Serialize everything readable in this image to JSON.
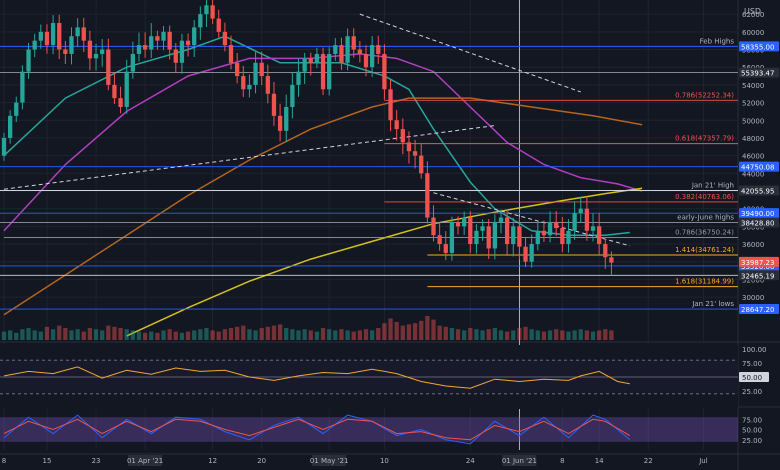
{
  "chart_data": [
    {
      "type": "candlestick",
      "panel": "price",
      "currency_label": "USD",
      "ylim": [
        25600,
        63600
      ],
      "y_ticks": [
        30000,
        32000,
        34000,
        36000,
        38000,
        40000,
        42000,
        44000,
        46000,
        48000,
        50000,
        52000,
        54000,
        56000,
        58000,
        60000,
        62000
      ],
      "x_ticks": [
        {
          "day": 0,
          "label": "8"
        },
        {
          "day": 7,
          "label": "15"
        },
        {
          "day": 15,
          "label": "23"
        },
        {
          "day": 23,
          "label": "01 Apr '21"
        },
        {
          "day": 34,
          "label": "12"
        },
        {
          "day": 42,
          "label": "20"
        },
        {
          "day": 53,
          "label": "01 May '21"
        },
        {
          "day": 62,
          "label": "10"
        },
        {
          "day": 76,
          "label": "24"
        },
        {
          "day": 84,
          "label": "01 Jun '21"
        },
        {
          "day": 91,
          "label": "8"
        },
        {
          "day": 97,
          "label": "14"
        },
        {
          "day": 105,
          "label": "22"
        },
        {
          "day": 114,
          "label": "Jul"
        }
      ],
      "x_range": [
        0,
        118
      ],
      "closes": [
        48000,
        50500,
        52000,
        55500,
        58000,
        59000,
        60000,
        58500,
        61000,
        58000,
        57500,
        59500,
        60500,
        59000,
        57000,
        57500,
        58000,
        54000,
        52500,
        51500,
        55500,
        57500,
        58500,
        58000,
        59500,
        59000,
        60000,
        58000,
        56500,
        59000,
        58500,
        60500,
        62000,
        63000,
        61500,
        60000,
        58500,
        56500,
        55000,
        53500,
        54000,
        56500,
        55000,
        53000,
        50500,
        48800,
        51500,
        54000,
        55500,
        57000,
        56500,
        57500,
        53500,
        57500,
        58500,
        56500,
        59500,
        58000,
        57500,
        56000,
        58500,
        57500,
        53500,
        50000,
        49000,
        47500,
        46500,
        46000,
        44000,
        39000,
        37000,
        36000,
        35000,
        38500,
        38000,
        39000,
        36000,
        37500,
        38000,
        35500,
        38500,
        39000,
        36000,
        38000,
        35700,
        34000,
        36000,
        37500,
        37000,
        38500,
        37800,
        36000,
        37500,
        39500,
        40000,
        37500,
        38000,
        36000,
        34500,
        33900
      ],
      "ranges": [
        {
          "from": 0,
          "open": 46000,
          "high": 52000,
          "low": 45500
        }
      ],
      "range_note": "daily open/high/low estimated around the closes",
      "moving_averages": [
        {
          "color": "#26a69a",
          "points": [
            [
              0,
              46000
            ],
            [
              10,
              52500
            ],
            [
              20,
              56000
            ],
            [
              30,
              58000
            ],
            [
              36,
              59500
            ],
            [
              45,
              56500
            ],
            [
              55,
              56500
            ],
            [
              62,
              55000
            ],
            [
              66,
              53500
            ],
            [
              70,
              49000
            ],
            [
              76,
              43000
            ],
            [
              80,
              40000
            ],
            [
              86,
              37500
            ],
            [
              92,
              37000
            ],
            [
              98,
              37000
            ],
            [
              102,
              37300
            ]
          ]
        },
        {
          "color": "#b23fc1",
          "points": [
            [
              0,
              37500
            ],
            [
              10,
              45000
            ],
            [
              20,
              51000
            ],
            [
              30,
              55000
            ],
            [
              40,
              57000
            ],
            [
              50,
              57000
            ],
            [
              58,
              57500
            ],
            [
              64,
              57000
            ],
            [
              70,
              55500
            ],
            [
              76,
              51500
            ],
            [
              82,
              47500
            ],
            [
              88,
              45000
            ],
            [
              94,
              43500
            ],
            [
              100,
              42800
            ],
            [
              104,
              42000
            ]
          ]
        },
        {
          "color": "#b5651d",
          "points": [
            [
              0,
              28000
            ],
            [
              10,
              32500
            ],
            [
              20,
              37000
            ],
            [
              30,
              41500
            ],
            [
              40,
              45500
            ],
            [
              50,
              49000
            ],
            [
              60,
              51500
            ],
            [
              66,
              52500
            ],
            [
              76,
              52500
            ],
            [
              86,
              51500
            ],
            [
              96,
              50500
            ],
            [
              104,
              49500
            ]
          ]
        },
        {
          "color": "#d4c11f",
          "points": [
            [
              20,
              25600
            ],
            [
              30,
              28800
            ],
            [
              40,
              31800
            ],
            [
              50,
              34300
            ],
            [
              60,
              36300
            ],
            [
              70,
              38300
            ],
            [
              80,
              39600
            ],
            [
              90,
              40800
            ],
            [
              98,
              41700
            ],
            [
              104,
              42300
            ]
          ]
        }
      ],
      "horizontal_levels": [
        {
          "value": 58355.0,
          "label": "Feb Highs",
          "price_tag": "58355.00",
          "color": "#2962ff",
          "tag_color": "#2962ff"
        },
        {
          "value": 55393.47,
          "price_tag": "55393.47",
          "color": "#9598a1",
          "tag_color": "#2a2e39"
        },
        {
          "value": 44750.08,
          "price_tag": "44750.08",
          "color": "#2962ff",
          "tag_color": "#2962ff"
        },
        {
          "value": 42055.95,
          "label": "Jan 21' High",
          "price_tag": "42055.95",
          "color": "#d1d4dc",
          "tag_color": "#2a2e39"
        },
        {
          "value": 39490.0,
          "price_tag": "39490.00",
          "color": "#2962ff",
          "tag_color": "#2962ff"
        },
        {
          "value": 38428.8,
          "label": "early-June highs",
          "price_tag": "38428.80",
          "color": "#9598a1",
          "tag_color": "#2a2e39"
        },
        {
          "value": 33520.0,
          "price_tag": "33520.00",
          "color": "#2962ff",
          "tag_color": "#2962ff"
        },
        {
          "value": 32465.19,
          "price_tag": "32465.19",
          "color": "#d1d4dc",
          "tag_color": "#2a2e39"
        },
        {
          "value": 28647.2,
          "label": "Jan 21' lows",
          "price_tag": "28647.20",
          "color": "#2962ff",
          "tag_color": "#2962ff"
        }
      ],
      "current_price": {
        "value": 33987.23,
        "price_tag": "33987.23",
        "tag_color": "#ef5350"
      },
      "fib_levels": [
        {
          "value": 52252.34,
          "label": "0.786(52252.34)",
          "color": "#ef5350",
          "from_day": 62
        },
        {
          "value": 47357.79,
          "label": "0.618(47357.79)",
          "color": "#ef5350",
          "from_day": 62
        },
        {
          "value": 40763.06,
          "label": "0.382(40763.06)",
          "color": "#ef5350",
          "from_day": 62
        },
        {
          "value": 36750.24,
          "label": "0.786(36750.24)",
          "color": "#9598a1",
          "from_day": 0
        },
        {
          "value": 34761.24,
          "label": "1.414(34761.24)",
          "color": "#f9a825",
          "from_day": 69
        },
        {
          "value": 31184.99,
          "label": "1.618(31184.99)",
          "color": "#f9a825",
          "from_day": 69
        }
      ],
      "trendlines": [
        {
          "points": [
            [
              0,
              42200
            ],
            [
              80,
              49400
            ]
          ],
          "color": "#d1d4dc",
          "dashed": true
        },
        {
          "points": [
            [
              58,
              62000
            ],
            [
              94,
              53200
            ]
          ],
          "color": "#d1d4dc",
          "dashed": true
        },
        {
          "points": [
            [
              70,
              41800
            ],
            [
              102,
              35800
            ]
          ],
          "color": "#d1d4dc",
          "dashed": true
        }
      ],
      "vertical_lines": [
        {
          "day": 84
        }
      ],
      "volume": {
        "note": "relative volume bars (no scale printed)",
        "values": [
          0.35,
          0.4,
          0.3,
          0.45,
          0.5,
          0.4,
          0.35,
          0.55,
          0.45,
          0.6,
          0.5,
          0.4,
          0.45,
          0.35,
          0.5,
          0.45,
          0.4,
          0.6,
          0.55,
          0.5,
          0.45,
          0.4,
          0.35,
          0.3,
          0.35,
          0.3,
          0.4,
          0.45,
          0.35,
          0.3,
          0.35,
          0.4,
          0.45,
          0.5,
          0.4,
          0.35,
          0.45,
          0.5,
          0.55,
          0.6,
          0.45,
          0.4,
          0.5,
          0.55,
          0.6,
          0.65,
          0.5,
          0.45,
          0.4,
          0.45,
          0.4,
          0.35,
          0.5,
          0.45,
          0.4,
          0.45,
          0.4,
          0.35,
          0.4,
          0.45,
          0.4,
          0.5,
          0.7,
          0.9,
          0.75,
          0.6,
          0.65,
          0.7,
          0.8,
          1.0,
          0.85,
          0.6,
          0.55,
          0.5,
          0.45,
          0.4,
          0.5,
          0.45,
          0.4,
          0.45,
          0.5,
          0.4,
          0.35,
          0.4,
          0.5,
          0.55,
          0.45,
          0.4,
          0.35,
          0.4,
          0.45,
          0.4,
          0.35,
          0.4,
          0.45,
          0.4,
          0.35,
          0.4,
          0.45,
          0.4
        ]
      }
    },
    {
      "type": "line",
      "panel": "rsi",
      "ylim": [
        0,
        100
      ],
      "y_ticks": [
        25,
        75,
        100
      ],
      "levels": [
        20,
        50,
        80
      ],
      "current_tag": "50.00",
      "x": [
        0,
        4,
        8,
        12,
        16,
        20,
        24,
        28,
        32,
        36,
        40,
        44,
        48,
        52,
        56,
        60,
        64,
        68,
        72,
        76,
        80,
        84,
        88,
        92,
        94,
        97,
        100,
        102
      ],
      "values": [
        52,
        60,
        56,
        68,
        48,
        62,
        55,
        66,
        60,
        62,
        50,
        44,
        52,
        58,
        56,
        64,
        56,
        42,
        34,
        30,
        46,
        42,
        46,
        44,
        52,
        60,
        42,
        38
      ],
      "line_color": "#f0a830"
    },
    {
      "type": "line",
      "panel": "stochastic",
      "ylim": [
        0,
        100
      ],
      "y_ticks": [
        25,
        50,
        75
      ],
      "x": [
        0,
        4,
        8,
        12,
        16,
        20,
        24,
        28,
        32,
        36,
        40,
        44,
        48,
        52,
        56,
        60,
        64,
        68,
        72,
        76,
        80,
        84,
        88,
        92,
        96,
        98,
        102
      ],
      "series": [
        {
          "color": "#2962ff",
          "values": [
            30,
            80,
            40,
            85,
            30,
            75,
            40,
            80,
            75,
            45,
            25,
            60,
            80,
            40,
            85,
            70,
            35,
            50,
            25,
            15,
            70,
            35,
            80,
            30,
            85,
            75,
            25
          ]
        },
        {
          "color": "#ef5350",
          "values": [
            40,
            70,
            50,
            75,
            40,
            70,
            45,
            75,
            70,
            50,
            35,
            55,
            75,
            50,
            75,
            70,
            40,
            45,
            30,
            25,
            60,
            45,
            70,
            40,
            75,
            70,
            35
          ]
        }
      ]
    }
  ]
}
